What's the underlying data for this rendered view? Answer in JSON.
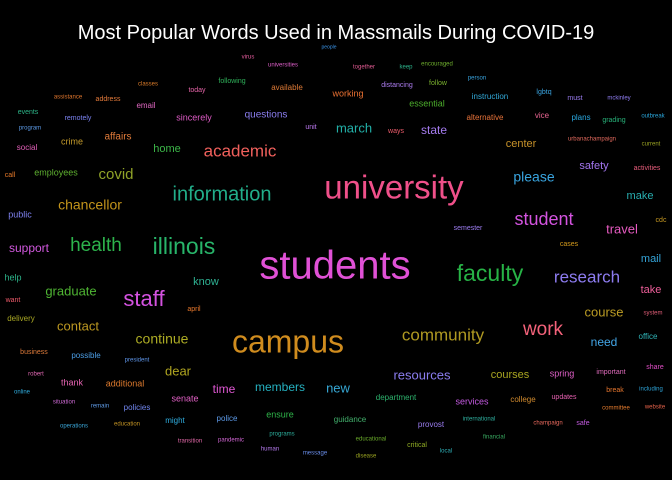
{
  "chart_data": {
    "type": "wordcloud",
    "title": "Most Popular Words Used in Massmails During COVID-19",
    "words": [
      {
        "text": "students",
        "weight": 100,
        "color": "#e051d6"
      },
      {
        "text": "university",
        "weight": 82,
        "color": "#f0508a"
      },
      {
        "text": "campus",
        "weight": 80,
        "color": "#d08c1e"
      },
      {
        "text": "illinois",
        "weight": 58,
        "color": "#28b56a"
      },
      {
        "text": "faculty",
        "weight": 58,
        "color": "#27b346"
      },
      {
        "text": "staff",
        "weight": 55,
        "color": "#d452e0"
      },
      {
        "text": "information",
        "weight": 50,
        "color": "#22ae8a"
      },
      {
        "text": "health",
        "weight": 48,
        "color": "#2db34c"
      },
      {
        "text": "work",
        "weight": 48,
        "color": "#f3627a"
      },
      {
        "text": "student",
        "weight": 45,
        "color": "#d454e0"
      },
      {
        "text": "academic",
        "weight": 42,
        "color": "#f0605c"
      },
      {
        "text": "research",
        "weight": 42,
        "color": "#8d7cf0"
      },
      {
        "text": "community",
        "weight": 42,
        "color": "#b09a22"
      },
      {
        "text": "covid",
        "weight": 38,
        "color": "#90a328"
      },
      {
        "text": "chancellor",
        "weight": 36,
        "color": "#c3941b"
      },
      {
        "text": "please",
        "weight": 36,
        "color": "#39a5e0"
      },
      {
        "text": "continue",
        "weight": 36,
        "color": "#adac24"
      },
      {
        "text": "contact",
        "weight": 32,
        "color": "#bc9821"
      },
      {
        "text": "travel",
        "weight": 32,
        "color": "#e65ac0"
      },
      {
        "text": "march",
        "weight": 30,
        "color": "#22b0a8"
      },
      {
        "text": "graduate",
        "weight": 30,
        "color": "#4fb533"
      },
      {
        "text": "course",
        "weight": 30,
        "color": "#bb9c24"
      },
      {
        "text": "new",
        "weight": 30,
        "color": "#36a7d4"
      },
      {
        "text": "dear",
        "weight": 28,
        "color": "#b0a520"
      },
      {
        "text": "resources",
        "weight": 28,
        "color": "#8b7df0"
      },
      {
        "text": "state",
        "weight": 27,
        "color": "#a57cf0"
      },
      {
        "text": "need",
        "weight": 27,
        "color": "#43a6e6"
      },
      {
        "text": "support",
        "weight": 26,
        "color": "#d258df"
      },
      {
        "text": "members",
        "weight": 26,
        "color": "#25b1c0"
      },
      {
        "text": "time",
        "weight": 26,
        "color": "#e158d4"
      },
      {
        "text": "home",
        "weight": 25,
        "color": "#3cb548"
      },
      {
        "text": "courses",
        "weight": 25,
        "color": "#a9a521"
      },
      {
        "text": "center",
        "weight": 25,
        "color": "#c7922a"
      },
      {
        "text": "make",
        "weight": 25,
        "color": "#28aeb0"
      },
      {
        "text": "safety",
        "weight": 24,
        "color": "#a275ee"
      },
      {
        "text": "know",
        "weight": 24,
        "color": "#2eb293"
      },
      {
        "text": "mail",
        "weight": 24,
        "color": "#34a4d8"
      },
      {
        "text": "take",
        "weight": 24,
        "color": "#ee5f9a"
      },
      {
        "text": "affairs",
        "weight": 22,
        "color": "#e27c3a"
      },
      {
        "text": "questions",
        "weight": 22,
        "color": "#8b7ef0"
      },
      {
        "text": "working",
        "weight": 21,
        "color": "#eb7132"
      },
      {
        "text": "ensure",
        "weight": 21,
        "color": "#2fb54a"
      },
      {
        "text": "spring",
        "weight": 21,
        "color": "#e060c8"
      },
      {
        "text": "public",
        "weight": 20,
        "color": "#7f82f0"
      },
      {
        "text": "help",
        "weight": 20,
        "color": "#2cb48a"
      },
      {
        "text": "senate",
        "weight": 20,
        "color": "#e060c4"
      },
      {
        "text": "thank",
        "weight": 20,
        "color": "#e664b2"
      },
      {
        "text": "additional",
        "weight": 20,
        "color": "#dd7a2e"
      },
      {
        "text": "sincerely",
        "weight": 20,
        "color": "#dd5ac4"
      },
      {
        "text": "essential",
        "weight": 20,
        "color": "#4cad2c"
      },
      {
        "text": "services",
        "weight": 20,
        "color": "#c45ae0"
      },
      {
        "text": "crime",
        "weight": 20,
        "color": "#c39a2a"
      },
      {
        "text": "employees",
        "weight": 20,
        "color": "#5eb030"
      },
      {
        "text": "alternative",
        "weight": 18,
        "color": "#e8733a"
      },
      {
        "text": "college",
        "weight": 18,
        "color": "#d08a2e"
      },
      {
        "text": "vice",
        "weight": 18,
        "color": "#e96592"
      },
      {
        "text": "plans",
        "weight": 18,
        "color": "#2aa8e0"
      },
      {
        "text": "instruction",
        "weight": 17,
        "color": "#32a9d8"
      },
      {
        "text": "possible",
        "weight": 17,
        "color": "#4c9ee6"
      },
      {
        "text": "office",
        "weight": 17,
        "color": "#2fb5b8"
      },
      {
        "text": "delivery",
        "weight": 17,
        "color": "#a9a824"
      },
      {
        "text": "social",
        "weight": 17,
        "color": "#e25fb8"
      },
      {
        "text": "policies",
        "weight": 16,
        "color": "#7186f0"
      },
      {
        "text": "police",
        "weight": 16,
        "color": "#5d9ae8"
      },
      {
        "text": "guidance",
        "weight": 16,
        "color": "#42b06c"
      },
      {
        "text": "department",
        "weight": 16,
        "color": "#2db36d"
      },
      {
        "text": "provost",
        "weight": 16,
        "color": "#9a7cef"
      },
      {
        "text": "available",
        "weight": 16,
        "color": "#de7a36"
      },
      {
        "text": "email",
        "weight": 16,
        "color": "#e068c2"
      },
      {
        "text": "might",
        "weight": 15,
        "color": "#30aee0"
      },
      {
        "text": "important",
        "weight": 15,
        "color": "#e06cbc"
      },
      {
        "text": "business",
        "weight": 15,
        "color": "#dc7a3a"
      },
      {
        "text": "call",
        "weight": 15,
        "color": "#e87a2a"
      },
      {
        "text": "want",
        "weight": 15,
        "color": "#ef5a6a"
      },
      {
        "text": "activities",
        "weight": 15,
        "color": "#e65c7a"
      },
      {
        "text": "updates",
        "weight": 15,
        "color": "#e660b0"
      },
      {
        "text": "semester",
        "weight": 15,
        "color": "#9c7cf0"
      },
      {
        "text": "today",
        "weight": 15,
        "color": "#e664a8"
      },
      {
        "text": "address",
        "weight": 14,
        "color": "#e47a3a"
      },
      {
        "text": "events",
        "weight": 14,
        "color": "#2cb487"
      },
      {
        "text": "remotely",
        "weight": 14,
        "color": "#7a82f0"
      },
      {
        "text": "following",
        "weight": 14,
        "color": "#2fb15a"
      },
      {
        "text": "follow",
        "weight": 14,
        "color": "#7ab22e"
      },
      {
        "text": "distancing",
        "weight": 14,
        "color": "#ac7cf0"
      },
      {
        "text": "unit",
        "weight": 14,
        "color": "#bb78ef"
      },
      {
        "text": "ways",
        "weight": 14,
        "color": "#ee5c6c"
      },
      {
        "text": "lgbtq",
        "weight": 14,
        "color": "#3aa4e0"
      },
      {
        "text": "must",
        "weight": 14,
        "color": "#9a7cf0"
      },
      {
        "text": "grading",
        "weight": 14,
        "color": "#28b27a"
      },
      {
        "text": "cdc",
        "weight": 14,
        "color": "#c89a22"
      },
      {
        "text": "cases",
        "weight": 14,
        "color": "#d49a1c"
      },
      {
        "text": "april",
        "weight": 14,
        "color": "#e8782c"
      },
      {
        "text": "break",
        "weight": 14,
        "color": "#e6762e"
      },
      {
        "text": "share",
        "weight": 14,
        "color": "#e24fc8"
      },
      {
        "text": "safe",
        "weight": 14,
        "color": "#c35ae0"
      },
      {
        "text": "critical",
        "weight": 14,
        "color": "#8fab24"
      },
      {
        "text": "online",
        "weight": 13,
        "color": "#30aee0"
      },
      {
        "text": "robert",
        "weight": 13,
        "color": "#e46ab6"
      },
      {
        "text": "situation",
        "weight": 13,
        "color": "#cd6ad4"
      },
      {
        "text": "remain",
        "weight": 13,
        "color": "#5f9be6"
      },
      {
        "text": "programs",
        "weight": 13,
        "color": "#2cae9c"
      },
      {
        "text": "message",
        "weight": 13,
        "color": "#6a8eea"
      },
      {
        "text": "disease",
        "weight": 13,
        "color": "#9aa320"
      },
      {
        "text": "educational",
        "weight": 13,
        "color": "#6aab2a"
      },
      {
        "text": "local",
        "weight": 13,
        "color": "#2fb0b8"
      },
      {
        "text": "financial",
        "weight": 13,
        "color": "#38a960"
      },
      {
        "text": "including",
        "weight": 13,
        "color": "#2ea4d8"
      },
      {
        "text": "system",
        "weight": 13,
        "color": "#e25e78"
      },
      {
        "text": "current",
        "weight": 13,
        "color": "#9aa323"
      },
      {
        "text": "classes",
        "weight": 13,
        "color": "#dd7d2a"
      },
      {
        "text": "program",
        "weight": 12,
        "color": "#5c9ae6"
      },
      {
        "text": "assistance",
        "weight": 12,
        "color": "#e1772e"
      },
      {
        "text": "virus",
        "weight": 12,
        "color": "#e35b9c"
      },
      {
        "text": "universities",
        "weight": 12,
        "color": "#dd5ec8"
      },
      {
        "text": "together",
        "weight": 12,
        "color": "#e45c94"
      },
      {
        "text": "keep",
        "weight": 12,
        "color": "#2cb48c"
      },
      {
        "text": "encouraged",
        "weight": 12,
        "color": "#6fb02e"
      },
      {
        "text": "person",
        "weight": 12,
        "color": "#39a5e0"
      },
      {
        "text": "mckinley",
        "weight": 12,
        "color": "#8f7cf0"
      },
      {
        "text": "outbreak",
        "weight": 12,
        "color": "#2aa7dc"
      },
      {
        "text": "urbanachampaign",
        "weight": 12,
        "color": "#e36a5e"
      },
      {
        "text": "president",
        "weight": 12,
        "color": "#5f96ea"
      },
      {
        "text": "operations",
        "weight": 12,
        "color": "#3aa6d8"
      },
      {
        "text": "education",
        "weight": 12,
        "color": "#c49424"
      },
      {
        "text": "transition",
        "weight": 12,
        "color": "#e268a8"
      },
      {
        "text": "pandemic",
        "weight": 12,
        "color": "#d466d6"
      },
      {
        "text": "human",
        "weight": 12,
        "color": "#b57aee"
      },
      {
        "text": "international",
        "weight": 12,
        "color": "#2fb0a0"
      },
      {
        "text": "champaign",
        "weight": 12,
        "color": "#ea6a5e"
      },
      {
        "text": "committee",
        "weight": 12,
        "color": "#e67c2e"
      },
      {
        "text": "website",
        "weight": 12,
        "color": "#e6624a"
      },
      {
        "text": "people",
        "weight": 12,
        "color": "#3a94e8"
      }
    ]
  }
}
